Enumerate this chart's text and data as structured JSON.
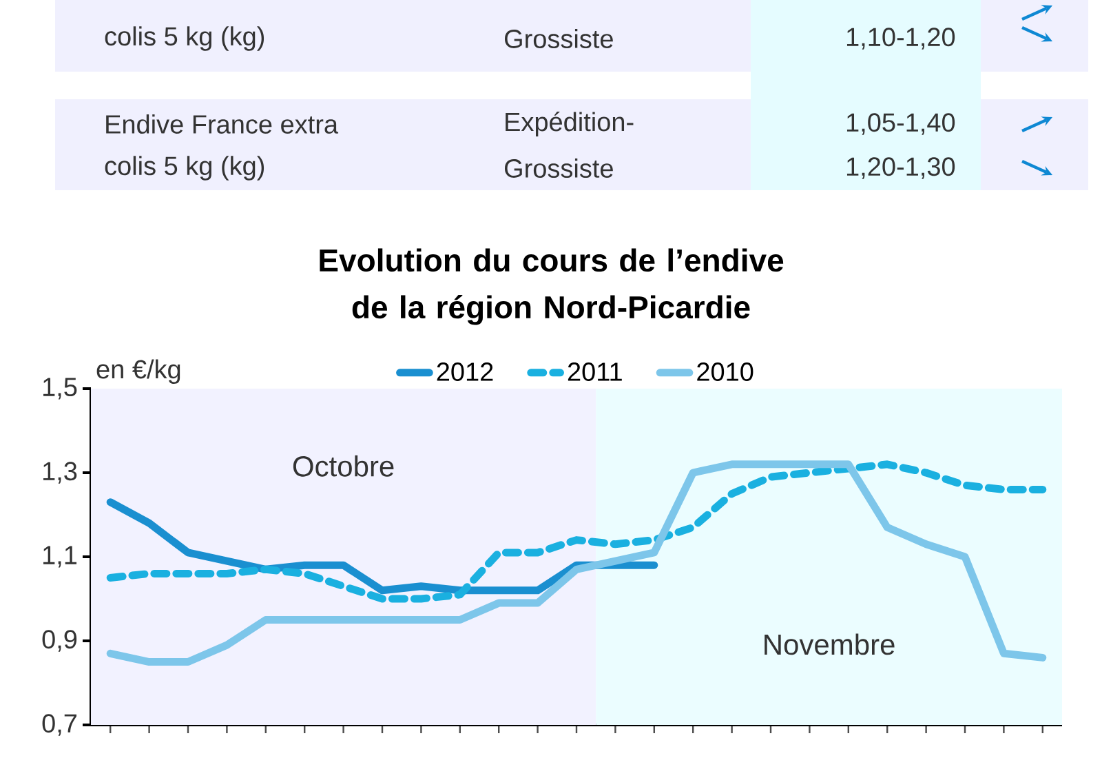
{
  "chart_data": {
    "type": "line",
    "title": "Evolution du cours de l’endive de la région Nord-Picardie",
    "ylabel": "en €/kg",
    "categories": [
      null,
      null,
      null,
      null,
      null,
      null,
      null,
      null,
      null,
      null,
      null,
      null,
      null,
      null,
      null,
      null,
      null,
      null,
      null,
      null,
      null,
      null,
      null,
      null,
      null
    ],
    "series": [
      {
        "name": "2012",
        "color": "#1a8fd0",
        "line_style": "solid",
        "values": [
          1.23,
          1.18,
          1.11,
          1.09,
          1.07,
          1.08,
          1.08,
          1.02,
          1.03,
          1.02,
          1.02,
          1.02,
          1.08,
          1.08,
          1.08,
          null,
          null,
          null,
          null,
          null,
          null,
          null,
          null,
          null,
          null
        ]
      },
      {
        "name": "2011",
        "color": "#1ab0e0",
        "line_style": "dashed",
        "values": [
          1.05,
          1.06,
          1.06,
          1.06,
          1.07,
          1.06,
          1.03,
          1.0,
          1.0,
          1.01,
          1.11,
          1.11,
          1.14,
          1.13,
          1.14,
          1.17,
          1.25,
          1.29,
          1.3,
          1.31,
          1.32,
          1.3,
          1.27,
          1.26,
          1.26
        ]
      },
      {
        "name": "2010",
        "color": "#7dc6ea",
        "line_style": "solid",
        "values": [
          0.87,
          0.85,
          0.85,
          0.89,
          0.95,
          0.95,
          0.95,
          0.95,
          0.95,
          0.95,
          0.99,
          0.99,
          1.07,
          1.09,
          1.11,
          1.3,
          1.32,
          1.32,
          1.32,
          1.32,
          1.17,
          1.13,
          1.1,
          0.87,
          0.86
        ]
      }
    ],
    "ylim": [
      0.7,
      1.5
    ],
    "yticks": [
      {
        "value": 0.7,
        "label": "0,7"
      },
      {
        "value": 0.9,
        "label": "0,9"
      },
      {
        "value": 1.1,
        "label": "1,1"
      },
      {
        "value": 1.3,
        "label": "1,3"
      },
      {
        "value": 1.5,
        "label": "1,5"
      }
    ],
    "legend": "top",
    "grid": false,
    "tick_labels": "y",
    "annotations": [
      "colis 5 kg (kg)",
      "Grossiste",
      "1,10-1,20",
      "Endive France extra",
      "Expédition-",
      "1,05-1,40",
      "colis 5 kg (kg)",
      "Grossiste",
      "1,20-1,30",
      "Octobre",
      "Novembre"
    ]
  }
}
